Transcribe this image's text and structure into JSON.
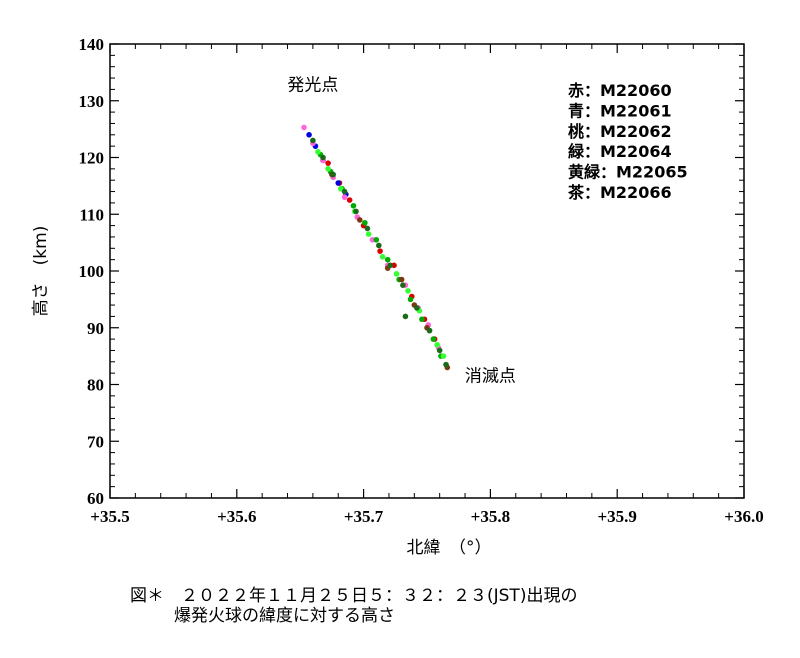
{
  "chart_data": {
    "type": "scatter",
    "xlabel": "北緯　（°）",
    "ylabel": "高さ　(km)",
    "xlim": [
      35.5,
      36.0
    ],
    "ylim": [
      60,
      140
    ],
    "x_ticks": [
      35.5,
      35.6,
      35.7,
      35.8,
      35.9,
      36.0
    ],
    "x_tick_labels": [
      "+35.5",
      "+35.6",
      "+35.7",
      "+35.8",
      "+35.9",
      "+36.0"
    ],
    "y_ticks": [
      60,
      70,
      80,
      90,
      100,
      110,
      120,
      130,
      140
    ],
    "y_tick_labels": [
      "60",
      "70",
      "80",
      "90",
      "100",
      "110",
      "120",
      "130",
      "140"
    ],
    "annotations": [
      {
        "text": "発光点",
        "x": 35.66,
        "y": 131.8
      },
      {
        "text": "消滅点",
        "x": 35.8,
        "y": 80.5
      }
    ],
    "legend": {
      "placement": "top-right",
      "entries": [
        "赤：M22060",
        "青：M22061",
        "桃：M22062",
        "緑：M22064",
        "黄緑：M22065",
        "茶：M22066"
      ]
    },
    "series": [
      {
        "color": "#dd0000",
        "x": [
          35.672,
          35.681,
          35.689,
          35.7,
          35.713,
          35.724,
          35.738,
          35.748,
          35.756
        ],
        "y": [
          119.0,
          115.5,
          112.5,
          108.0,
          103.5,
          101.0,
          95.5,
          91.5,
          88.0
        ]
      },
      {
        "color": "#0000dd",
        "x": [
          35.657,
          35.662,
          35.668,
          35.674,
          35.68,
          35.686
        ],
        "y": [
          124.0,
          122.0,
          119.5,
          117.5,
          115.5,
          113.5
        ]
      },
      {
        "color": "#ff66dd",
        "x": [
          35.653,
          35.66,
          35.668,
          35.676,
          35.685,
          35.695,
          35.707,
          35.719,
          35.733,
          35.743,
          35.751,
          35.759
        ],
        "y": [
          125.3,
          122.5,
          119.5,
          116.5,
          113.0,
          109.5,
          105.5,
          101.0,
          97.5,
          93.5,
          90.5,
          86.5
        ]
      },
      {
        "color": "#00aa00",
        "x": [
          35.666,
          35.674,
          35.683,
          35.692,
          35.701,
          35.71,
          35.719,
          35.728,
          35.737,
          35.746,
          35.755,
          35.761
        ],
        "y": [
          120.5,
          117.5,
          114.5,
          111.5,
          108.5,
          105.5,
          102.0,
          98.5,
          95.0,
          91.5,
          88.0,
          85.0
        ]
      },
      {
        "color": "#33ff33",
        "x": [
          35.664,
          35.672,
          35.682,
          35.693,
          35.704,
          35.715,
          35.726,
          35.735,
          35.744,
          35.752,
          35.758,
          35.763
        ],
        "y": [
          121.0,
          118.0,
          114.5,
          110.5,
          106.5,
          102.5,
          99.5,
          96.5,
          93.0,
          89.5,
          87.0,
          85.0
        ]
      },
      {
        "color": "#7a3a10",
        "x": [
          35.675,
          35.697,
          35.719,
          35.73,
          35.74,
          35.75,
          35.766
        ],
        "y": [
          117.0,
          109.0,
          100.5,
          98.5,
          94.0,
          90.0,
          83.0
        ]
      },
      {
        "color": "#1a6a1a",
        "x": [
          35.66,
          35.668,
          35.676,
          35.685,
          35.694,
          35.703,
          35.712,
          35.721,
          35.731,
          35.742,
          35.752,
          35.76,
          35.765,
          35.733
        ],
        "y": [
          123.0,
          120.0,
          117.0,
          114.0,
          110.5,
          107.5,
          104.5,
          101.0,
          97.5,
          93.5,
          89.5,
          86.0,
          83.5,
          92.0
        ]
      }
    ]
  },
  "caption": {
    "line1": "図＊　２０２２年１１月２５日５：３２：２３(JST)出現の",
    "line2": "爆発火球の緯度に対する高さ"
  }
}
